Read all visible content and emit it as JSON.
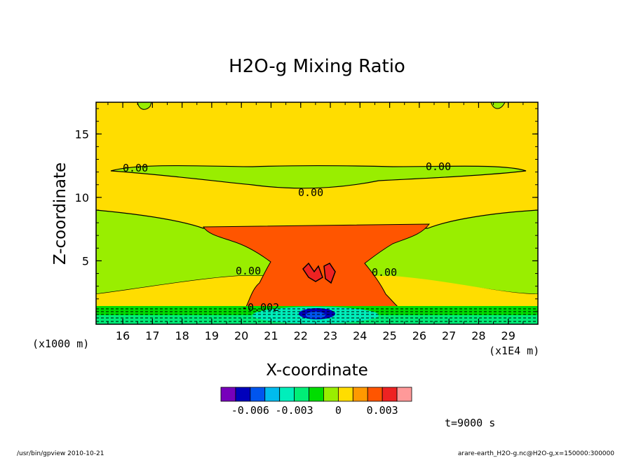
{
  "chart_data": {
    "type": "heatmap",
    "title": "H2O-g Mixing Ratio",
    "xlabel": "X-coordinate",
    "ylabel": "Z-coordinate",
    "x_unit": "(x1E4 m)",
    "y_unit": "(x1000 m)",
    "xlim": [
      15.1,
      30.0
    ],
    "ylim": [
      0.0,
      17.5
    ],
    "x_ticks": [
      "16",
      "17",
      "18",
      "19",
      "20",
      "21",
      "22",
      "23",
      "24",
      "25",
      "26",
      "27",
      "28",
      "29"
    ],
    "y_ticks": [
      "5",
      "10",
      "15"
    ],
    "contour_labels": [
      "0.00",
      "0.00",
      "0.00",
      "0.00",
      "0.00",
      "-0.002"
    ],
    "colorbar": {
      "colors": [
        "#7700bb",
        "#0000bb",
        "#0055ee",
        "#00bbee",
        "#00eebb",
        "#00ee77",
        "#00dd00",
        "#99ee00",
        "#ffdd00",
        "#ff9900",
        "#ff5500",
        "#ee2222",
        "#ff9999"
      ],
      "tick_labels": [
        "-0.006",
        "-0.003",
        "0",
        "0.003"
      ]
    },
    "regions": [
      {
        "name": "upper-layer",
        "color": "#ffdd00"
      },
      {
        "name": "green-band-12km",
        "color": "#99ee00"
      },
      {
        "name": "green-band-7km",
        "color": "#99ee00"
      },
      {
        "name": "outflow-anvil",
        "color": "#ff5500"
      },
      {
        "name": "core",
        "color": "#ee2222"
      },
      {
        "name": "surface-layer",
        "color": "#00dd00"
      },
      {
        "name": "surface-minimum",
        "color": "#0000bb"
      }
    ]
  },
  "annotations": {
    "time": "t=9000 s",
    "footer_left": "/usr/bin/gpview   2010-10-21",
    "footer_right": "arare-earth_H2O-g.nc@H2O-g,x=150000:300000"
  }
}
